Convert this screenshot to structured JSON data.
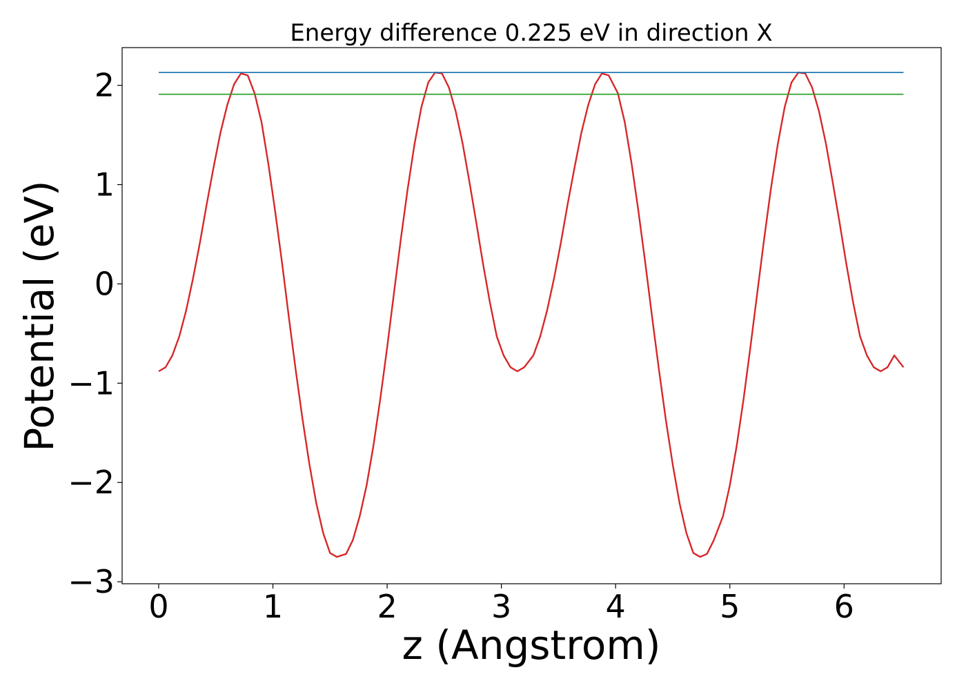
{
  "chart_data": {
    "type": "line",
    "title": "Energy difference 0.225 eV in direction X",
    "xlabel": "z (Angstrom)",
    "ylabel": "Potential (eV)",
    "xlim": [
      -0.32,
      6.85
    ],
    "ylim": [
      -3.02,
      2.38
    ],
    "xticks": [
      0,
      1,
      2,
      3,
      4,
      5,
      6
    ],
    "xtick_labels": [
      "0",
      "1",
      "2",
      "3",
      "4",
      "5",
      "6"
    ],
    "yticks": [
      -3,
      -2,
      -1,
      0,
      1,
      2
    ],
    "ytick_labels": [
      "−3",
      "−2",
      "−1",
      "0",
      "1",
      "2"
    ],
    "grid": false,
    "series": [
      {
        "color": "#d62728",
        "x": [
          0.0,
          0.06,
          0.12,
          0.18,
          0.24,
          0.3,
          0.36,
          0.42,
          0.48,
          0.54,
          0.6,
          0.66,
          0.72,
          0.78,
          0.84,
          0.9,
          0.96,
          1.02,
          1.08,
          1.14,
          1.2,
          1.26,
          1.32,
          1.38,
          1.44,
          1.5,
          1.56,
          1.64,
          1.7,
          1.76,
          1.82,
          1.88,
          1.94,
          2.0,
          2.06,
          2.12,
          2.18,
          2.24,
          2.3,
          2.36,
          2.42,
          2.48,
          2.54,
          2.6,
          2.66,
          2.72,
          2.78,
          2.84,
          2.9,
          2.96,
          3.02,
          3.08,
          3.14,
          3.2,
          3.28,
          3.34,
          3.4,
          3.46,
          3.52,
          3.58,
          3.64,
          3.7,
          3.76,
          3.82,
          3.88,
          3.94,
          4.02,
          4.08,
          4.14,
          4.2,
          4.26,
          4.32,
          4.38,
          4.44,
          4.5,
          4.56,
          4.62,
          4.68,
          4.74,
          4.8,
          4.86,
          4.94,
          5.0,
          5.06,
          5.12,
          5.18,
          5.24,
          5.3,
          5.36,
          5.42,
          5.48,
          5.54,
          5.6,
          5.66,
          5.72,
          5.78,
          5.84,
          5.9,
          5.96,
          6.02,
          6.08,
          6.14,
          6.2,
          6.26,
          6.32,
          6.38,
          6.44,
          6.52
        ],
        "y": [
          -0.88,
          -0.84,
          -0.72,
          -0.53,
          -0.27,
          0.05,
          0.41,
          0.8,
          1.17,
          1.52,
          1.8,
          2.01,
          2.12,
          2.1,
          1.92,
          1.63,
          1.21,
          0.73,
          0.21,
          -0.34,
          -0.87,
          -1.37,
          -1.82,
          -2.21,
          -2.51,
          -2.71,
          -2.75,
          -2.72,
          -2.58,
          -2.34,
          -2.03,
          -1.63,
          -1.16,
          -0.64,
          -0.09,
          0.45,
          0.96,
          1.41,
          1.78,
          2.03,
          2.13,
          2.12,
          1.98,
          1.74,
          1.42,
          1.03,
          0.62,
          0.2,
          -0.19,
          -0.53,
          -0.72,
          -0.84,
          -0.88,
          -0.84,
          -0.72,
          -0.53,
          -0.27,
          0.05,
          0.41,
          0.8,
          1.17,
          1.52,
          1.8,
          2.01,
          2.12,
          2.1,
          1.92,
          1.63,
          1.21,
          0.73,
          0.21,
          -0.34,
          -0.87,
          -1.37,
          -1.82,
          -2.21,
          -2.51,
          -2.71,
          -2.75,
          -2.72,
          -2.58,
          -2.34,
          -2.03,
          -1.63,
          -1.16,
          -0.64,
          -0.09,
          0.45,
          0.96,
          1.41,
          1.78,
          2.03,
          2.13,
          2.12,
          1.98,
          1.74,
          1.42,
          1.03,
          0.62,
          0.2,
          -0.19,
          -0.53,
          -0.72,
          -0.84,
          -0.88,
          -0.84,
          -0.72,
          -0.84
        ]
      },
      {
        "color": "#1f77b4",
        "x": [
          0.0,
          6.52
        ],
        "y": [
          2.13,
          2.13
        ]
      },
      {
        "color": "#2ca02c",
        "x": [
          0.0,
          6.52
        ],
        "y": [
          1.91,
          1.91
        ]
      }
    ]
  }
}
